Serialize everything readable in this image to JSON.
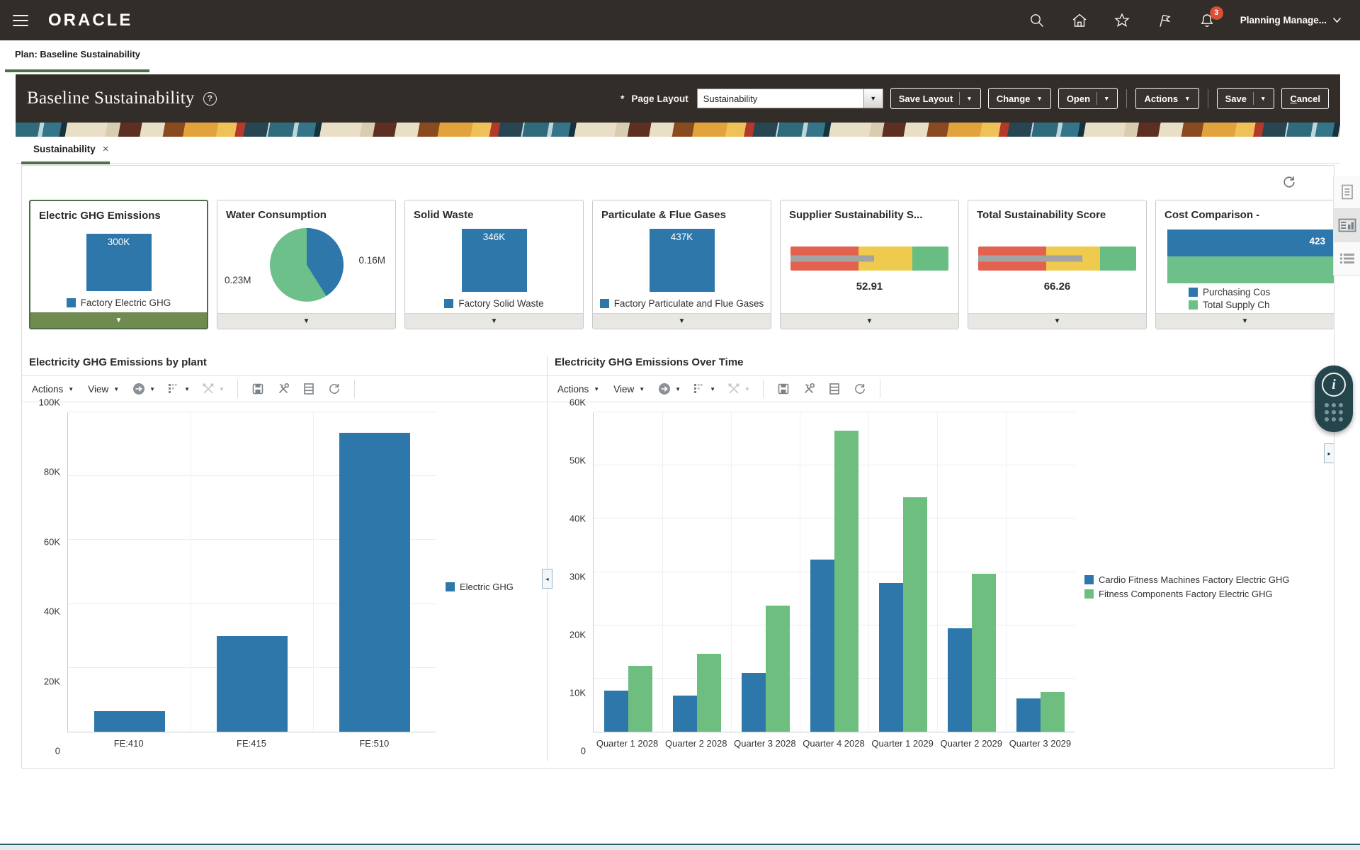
{
  "topbar": {
    "brand": "ORACLE",
    "user_menu": "Planning Manage...",
    "notification_badge": "3"
  },
  "plan_tab": {
    "label": "Plan: Baseline Sustainability"
  },
  "page_header": {
    "title": "Baseline Sustainability",
    "required_marker": "*",
    "page_layout_label": "Page Layout",
    "page_layout_value": "Sustainability",
    "buttons": {
      "save_layout": "Save Layout",
      "change": "Change",
      "open": "Open",
      "actions": "Actions",
      "save": "Save",
      "cancel": "Cancel"
    }
  },
  "workspace_tab": {
    "label": "Sustainability",
    "close_glyph": "×"
  },
  "kpi_cards": [
    {
      "title": "Electric GHG Emissions",
      "selected": true,
      "type": "bar",
      "value_label": "300K",
      "bar_height_pct": 88,
      "color": "#2e77ab",
      "legend": [
        {
          "label": "Factory Electric GHG",
          "color": "#2e77ab"
        }
      ]
    },
    {
      "title": "Water Consumption",
      "selected": false,
      "type": "pie",
      "slices": [
        {
          "label": "0.16M",
          "color": "#2e77ab",
          "start_deg": 0,
          "end_deg": 148
        },
        {
          "label": "0.23M",
          "color": "#6ec08b",
          "start_deg": 148,
          "end_deg": 360
        }
      ]
    },
    {
      "title": "Solid Waste",
      "selected": false,
      "type": "bar",
      "value_label": "346K",
      "bar_height_pct": 95,
      "color": "#2e77ab",
      "legend": [
        {
          "label": "Factory Solid Waste",
          "color": "#2e77ab"
        }
      ]
    },
    {
      "title": "Particulate & Flue Gases",
      "selected": false,
      "type": "bar",
      "value_label": "437K",
      "bar_height_pct": 95,
      "color": "#2e77ab",
      "legend": [
        {
          "label": "Factory Particulate and Flue Gases",
          "color": "#2e77ab"
        }
      ]
    },
    {
      "title": "Supplier Sustainability S...",
      "selected": false,
      "type": "gauge",
      "value_label": "52.91",
      "needle_pct": 53,
      "segments": [
        {
          "color": "#e2614f",
          "pct": 43
        },
        {
          "color": "#eecb4f",
          "pct": 34
        },
        {
          "color": "#68bd83",
          "pct": 23
        }
      ]
    },
    {
      "title": "Total Sustainability Score",
      "selected": false,
      "type": "gauge",
      "value_label": "66.26",
      "needle_pct": 66,
      "segments": [
        {
          "color": "#e2614f",
          "pct": 43
        },
        {
          "color": "#eecb4f",
          "pct": 34
        },
        {
          "color": "#68bd83",
          "pct": 23
        }
      ]
    },
    {
      "title": "Cost Comparison - ",
      "selected": false,
      "type": "hbar",
      "bars": [
        {
          "label": "423",
          "color": "#2e77ab"
        },
        {
          "label": "",
          "color": "#6ec08b"
        }
      ],
      "legend": [
        {
          "label": "Purchasing Cos",
          "color": "#2e77ab"
        },
        {
          "label": "Total Supply Ch",
          "color": "#6ec08b"
        }
      ]
    }
  ],
  "chart_toolbar": {
    "actions": "Actions",
    "view": "View"
  },
  "chart_data": [
    {
      "type": "bar",
      "title": "Electricity GHG Emissions by plant",
      "categories": [
        "FE:410",
        "FE:415",
        "FE:510"
      ],
      "series": [
        {
          "name": "Electric GHG",
          "color": "#2e77ab",
          "values": [
            6500,
            30000,
            93500
          ]
        }
      ],
      "xlabel": "",
      "ylabel": "",
      "ylim": [
        0,
        100000
      ],
      "ytick_step": 20000,
      "grid": true,
      "legend_position": "right"
    },
    {
      "type": "bar",
      "title": "Electricity GHG Emissions Over Time",
      "categories": [
        "Quarter 1 2028",
        "Quarter 2 2028",
        "Quarter 3 2028",
        "Quarter 4 2028",
        "Quarter 1 2029",
        "Quarter 2 2029",
        "Quarter 3 2029"
      ],
      "series": [
        {
          "name": "Cardio Fitness Machines Factory Electric GHG",
          "color": "#2e77ab",
          "values": [
            7700,
            6800,
            11000,
            32300,
            28000,
            19400,
            6200
          ]
        },
        {
          "name": "Fitness Components Factory Electric GHG",
          "color": "#6ebf7f",
          "values": [
            12400,
            14700,
            23700,
            56500,
            44000,
            29700,
            7400
          ]
        }
      ],
      "xlabel": "",
      "ylabel": "",
      "ylim": [
        0,
        60000
      ],
      "ytick_step": 10000,
      "grid": true,
      "legend_position": "right"
    }
  ],
  "colors": {
    "accent_green": "#4a7143",
    "header_bg": "#322d29",
    "series_blue": "#2e77ab",
    "series_green": "#6ebf7f",
    "gauge_red": "#e2614f",
    "gauge_yellow": "#eecb4f",
    "gauge_green": "#68bd83",
    "badge_red": "#d94f38"
  }
}
